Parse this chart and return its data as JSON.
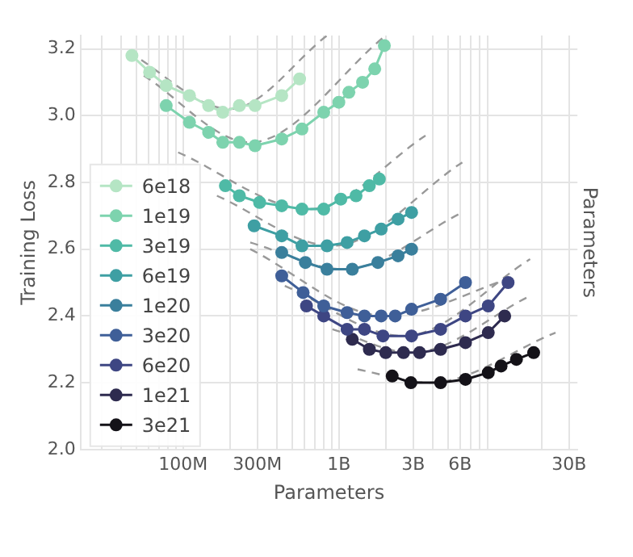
{
  "chart_data": {
    "type": "line",
    "xlabel": "Parameters",
    "ylabel": "Training Loss",
    "y2label": "Parameters",
    "log": "x",
    "grid": true,
    "legend": "lower left",
    "marker": "circle",
    "line_style": "solid",
    "xlim": [
      22000000.0,
      34000000000.0
    ],
    "xticks": [
      {
        "value": 30000000.0,
        "label": null
      },
      {
        "value": 40000000.0,
        "label": null
      },
      {
        "value": 50000000.0,
        "label": null
      },
      {
        "value": 60000000.0,
        "label": null
      },
      {
        "value": 70000000.0,
        "label": null
      },
      {
        "value": 80000000.0,
        "label": null
      },
      {
        "value": 90000000.0,
        "label": null
      },
      {
        "value": 100000000.0,
        "label": "100M"
      },
      {
        "value": 200000000.0,
        "label": null
      },
      {
        "value": 300000000.0,
        "label": "300M"
      },
      {
        "value": 400000000.0,
        "label": null
      },
      {
        "value": 500000000.0,
        "label": null
      },
      {
        "value": 600000000.0,
        "label": null
      },
      {
        "value": 700000000.0,
        "label": null
      },
      {
        "value": 800000000.0,
        "label": null
      },
      {
        "value": 900000000.0,
        "label": null
      },
      {
        "value": 1000000000.0,
        "label": "1B"
      },
      {
        "value": 2000000000.0,
        "label": null
      },
      {
        "value": 3000000000.0,
        "label": "3B"
      },
      {
        "value": 4000000000.0,
        "label": null
      },
      {
        "value": 5000000000.0,
        "label": null
      },
      {
        "value": 6000000000.0,
        "label": "6B"
      },
      {
        "value": 7000000000.0,
        "label": null
      },
      {
        "value": 8000000000.0,
        "label": null
      },
      {
        "value": 9000000000.0,
        "label": null
      },
      {
        "value": 20000000000.0,
        "label": null
      },
      {
        "value": 30000000000.0,
        "label": "30B"
      }
    ],
    "ylim": [
      2.0,
      3.24
    ],
    "yticks": [
      {
        "value": 2,
        "label": "2.0"
      },
      2.2,
      2.4,
      2.6,
      2.8,
      {
        "value": 3,
        "label": "3.0"
      },
      3.2
    ],
    "series": [
      {
        "color": "#999999",
        "marker": "none",
        "line_style": "dashed",
        "x": [
          45000000.0,
          200000000.0,
          840000000.0
        ],
        "values": [
          3.19,
          3.02,
          3.24
        ]
      },
      {
        "color": "#999999",
        "marker": "none",
        "line_style": "dashed",
        "x": [
          56000000.0,
          270000000.0,
          2000000000.0
        ],
        "values": [
          3.12,
          2.92,
          3.24
        ]
      },
      {
        "color": "#999999",
        "marker": "none",
        "line_style": "dashed",
        "x": [
          93000000.0,
          650000000.0,
          3600000000.0
        ],
        "values": [
          2.89,
          2.72,
          2.94
        ]
      },
      {
        "color": "#999999",
        "marker": "none",
        "line_style": "dashed",
        "x": [
          165000000.0,
          910000000.0,
          6200000000.0
        ],
        "values": [
          2.76,
          2.61,
          2.86
        ]
      },
      {
        "color": "#999999",
        "marker": "none",
        "line_style": "dashed",
        "x": [
          270000000.0,
          1080000000.0,
          6200000000.0
        ],
        "values": [
          2.62,
          2.54,
          2.71
        ]
      },
      {
        "color": "#999999",
        "marker": "none",
        "line_style": "dashed",
        "x": [
          270000000.0,
          2000000000.0,
          13800000000.0
        ],
        "values": [
          2.6,
          2.4,
          2.52
        ]
      },
      {
        "color": "#999999",
        "marker": "none",
        "line_style": "dashed",
        "x": [
          450000000.0,
          2600000000.0,
          16900000000.0
        ],
        "values": [
          2.49,
          2.34,
          2.57
        ]
      },
      {
        "color": "#999999",
        "marker": "none",
        "line_style": "dashed",
        "x": [
          910000000.0,
          2930000000.0,
          16900000000.0
        ],
        "values": [
          2.36,
          2.29,
          2.46
        ]
      },
      {
        "color": "#999999",
        "marker": "none",
        "line_style": "dashed",
        "x": [
          1320000000.0,
          3800000000.0,
          24600000000.0
        ],
        "values": [
          2.24,
          2.2,
          2.35
        ]
      },
      {
        "name": "6e18",
        "color": "#b5e5c4",
        "x": [
          47000000.0,
          61000000.0,
          78000000.0,
          110000000.0,
          146000000.0,
          180000000.0,
          230000000.0,
          290000000.0,
          430000000.0,
          560000000.0
        ],
        "values": [
          3.18,
          3.13,
          3.09,
          3.06,
          3.03,
          3.01,
          3.03,
          3.03,
          3.06,
          3.11
        ]
      },
      {
        "name": "1e19",
        "color": "#7dd3ae",
        "x": [
          78000000.0,
          110000000.0,
          146000000.0,
          180000000.0,
          230000000.0,
          290000000.0,
          430000000.0,
          580000000.0,
          800000000.0,
          1000000000.0,
          1160000000.0,
          1420000000.0,
          1700000000.0,
          1960000000.0
        ],
        "values": [
          3.03,
          2.98,
          2.95,
          2.92,
          2.92,
          2.91,
          2.93,
          2.96,
          3.01,
          3.04,
          3.07,
          3.1,
          3.14,
          3.21
        ]
      },
      {
        "name": "3e19",
        "color": "#4fbaa6",
        "x": [
          187000000.0,
          230000000.0,
          310000000.0,
          430000000.0,
          580000000.0,
          800000000.0,
          1030000000.0,
          1290000000.0,
          1570000000.0,
          1820000000.0
        ],
        "values": [
          2.79,
          2.76,
          2.74,
          2.73,
          2.72,
          2.72,
          2.75,
          2.76,
          2.79,
          2.81
        ]
      },
      {
        "name": "6e19",
        "color": "#3e9fa3",
        "x": [
          286000000.0,
          430000000.0,
          580000000.0,
          840000000.0,
          1130000000.0,
          1460000000.0,
          1870000000.0,
          2400000000.0,
          2930000000.0
        ],
        "values": [
          2.67,
          2.64,
          2.61,
          2.61,
          2.62,
          2.64,
          2.66,
          2.69,
          2.71
        ]
      },
      {
        "name": "1e20",
        "color": "#3a7f9c",
        "x": [
          430000000.0,
          610000000.0,
          840000000.0,
          1220000000.0,
          1780000000.0,
          2400000000.0,
          2930000000.0
        ],
        "values": [
          2.59,
          2.56,
          2.54,
          2.54,
          2.56,
          2.58,
          2.6
        ]
      },
      {
        "name": "3e20",
        "color": "#3f5f98",
        "x": [
          430000000.0,
          590000000.0,
          800000000.0,
          1130000000.0,
          1460000000.0,
          1870000000.0,
          2300000000.0,
          2930000000.0,
          4500000000.0,
          6500000000.0
        ],
        "values": [
          2.52,
          2.47,
          2.43,
          2.41,
          2.4,
          2.4,
          2.4,
          2.42,
          2.45,
          2.5
        ]
      },
      {
        "name": "6e20",
        "color": "#3e4683",
        "x": [
          620000000.0,
          800000000.0,
          1130000000.0,
          1460000000.0,
          1920000000.0,
          2930000000.0,
          4500000000.0,
          6500000000.0,
          9100000000.0,
          12200000000.0
        ],
        "values": [
          2.43,
          2.4,
          2.36,
          2.36,
          2.34,
          2.34,
          2.36,
          2.4,
          2.43,
          2.5
        ]
      },
      {
        "name": "1e21",
        "color": "#2e2b4f",
        "x": [
          1220000000.0,
          1570000000.0,
          2000000000.0,
          2600000000.0,
          3300000000.0,
          4500000000.0,
          6500000000.0,
          9100000000.0,
          11600000000.0
        ],
        "values": [
          2.33,
          2.3,
          2.29,
          2.29,
          2.29,
          2.3,
          2.32,
          2.35,
          2.4
        ]
      },
      {
        "name": "3e21",
        "color": "#141218",
        "x": [
          2200000000.0,
          2900000000.0,
          4500000000.0,
          6500000000.0,
          9100000000.0,
          11000000000.0,
          13800000000.0,
          17800000000.0
        ],
        "values": [
          2.22,
          2.2,
          2.2,
          2.21,
          2.23,
          2.25,
          2.27,
          2.29
        ]
      }
    ]
  }
}
